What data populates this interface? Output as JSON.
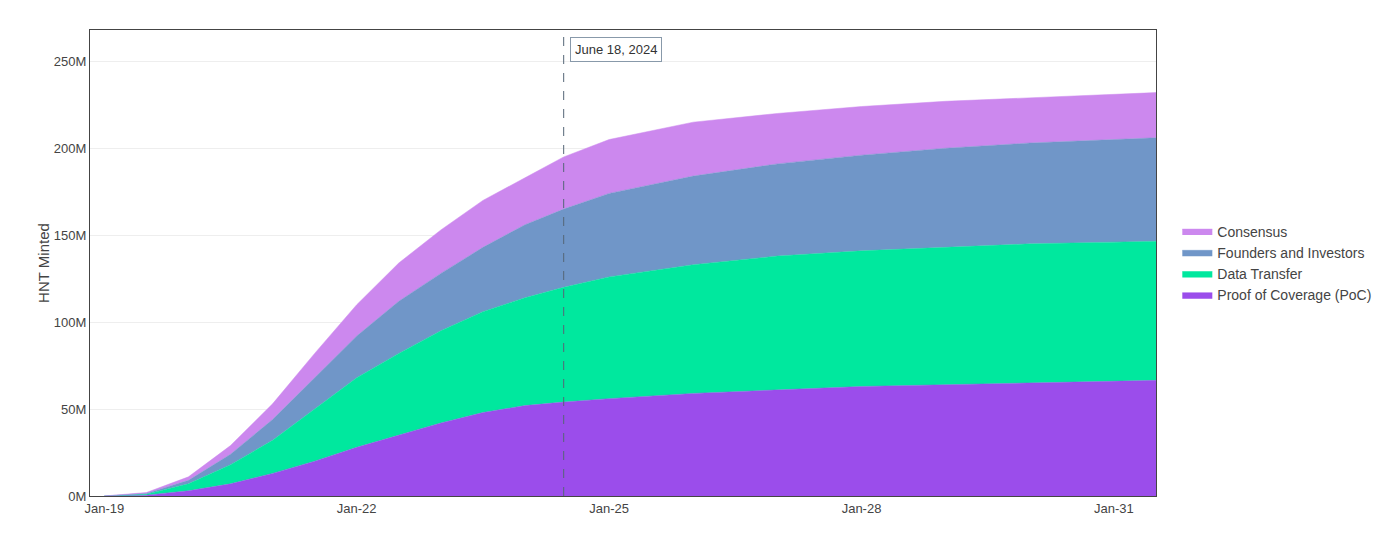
{
  "chart_data": {
    "type": "area",
    "stacked": true,
    "y_label": "HNT Minted",
    "x": [
      2019.0,
      2019.5,
      2020.0,
      2020.5,
      2021.0,
      2021.5,
      2022.0,
      2022.5,
      2023.0,
      2023.5,
      2024.0,
      2024.46,
      2025.0,
      2026.0,
      2027.0,
      2028.0,
      2029.0,
      2030.0,
      2031.0,
      2031.5
    ],
    "series": [
      {
        "name": "Proof of Coverage (PoC)",
        "color": "#9b4deb",
        "values": [
          0,
          500000,
          3000000,
          7000000,
          13000000,
          20000000,
          28000000,
          35000000,
          42000000,
          48000000,
          52000000,
          54000000,
          56000000,
          59000000,
          61000000,
          63000000,
          64000000,
          65000000,
          66000000,
          66500000
        ]
      },
      {
        "name": "Data Transfer",
        "color": "#00e89e",
        "values": [
          0,
          500000,
          4000000,
          11000000,
          19000000,
          30000000,
          40000000,
          47000000,
          53000000,
          58000000,
          62000000,
          66000000,
          70000000,
          74000000,
          77000000,
          78000000,
          79000000,
          80000000,
          80000000,
          80000000
        ]
      },
      {
        "name": "Founders and Investors",
        "color": "#7096c8",
        "values": [
          0,
          500000,
          2000000,
          6000000,
          12000000,
          18000000,
          24000000,
          30000000,
          33000000,
          37000000,
          42000000,
          45000000,
          48000000,
          51000000,
          53000000,
          55000000,
          57000000,
          58000000,
          59000000,
          59500000
        ]
      },
      {
        "name": "Consensus",
        "color": "#cc88ee",
        "values": [
          0,
          500000,
          2000000,
          5000000,
          9000000,
          14000000,
          18000000,
          22000000,
          25000000,
          27000000,
          27000000,
          30000000,
          31000000,
          31000000,
          29000000,
          28000000,
          27000000,
          26000000,
          26000000,
          26000000
        ]
      }
    ],
    "xlim": [
      2018.83,
      2031.5
    ],
    "xticks": [
      {
        "value": 2019,
        "label": "Jan-19"
      },
      {
        "value": 2022,
        "label": "Jan-22"
      },
      {
        "value": 2025,
        "label": "Jan-25"
      },
      {
        "value": 2028,
        "label": "Jan-28"
      },
      {
        "value": 2031,
        "label": "Jan-31"
      }
    ],
    "ylim": [
      0,
      268000000
    ],
    "yticks": [
      {
        "value": 0,
        "label": "0M"
      },
      {
        "value": 50000000,
        "label": "50M"
      },
      {
        "value": 100000000,
        "label": "100M"
      },
      {
        "value": 150000000,
        "label": "150M"
      },
      {
        "value": 200000000,
        "label": "200M"
      },
      {
        "value": 250000000,
        "label": "250M"
      }
    ],
    "grid": true,
    "legend": "right",
    "annotations": [
      {
        "text": "June 18, 2024",
        "x": 2024.46
      }
    ]
  }
}
